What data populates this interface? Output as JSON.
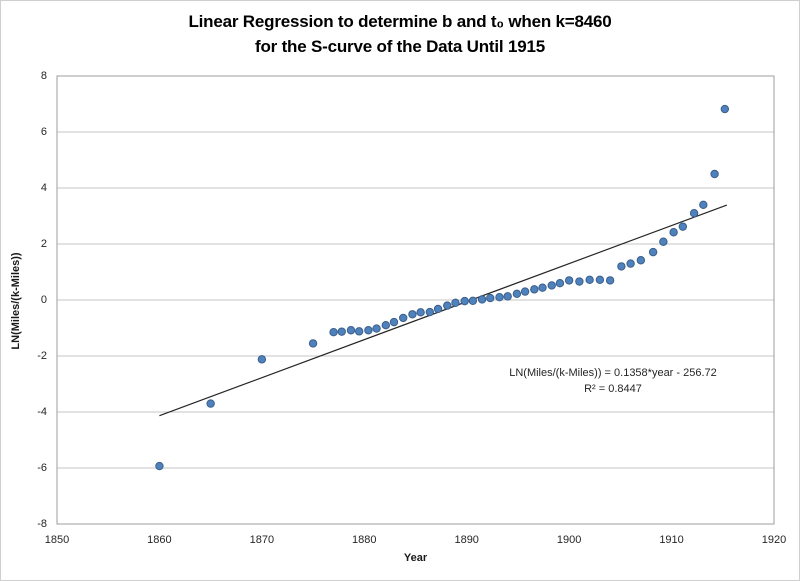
{
  "title": {
    "line1": "Linear Regression to determine b and t₀ when k=8460",
    "line2": "for the S-curve of the Data Until 1915"
  },
  "annotation": {
    "line1": "LN(Miles/(k-Miles)) = 0.1358*year - 256.72",
    "line2": "R² = 0.8447"
  },
  "chart_data": {
    "type": "scatter",
    "title": "Linear Regression to determine b and t₀ when k=8460 for the S-curve of the Data Until 1915",
    "xlabel": "Year",
    "ylabel": "LN(Miles/(k-Miles))",
    "xlim": [
      1850,
      1920
    ],
    "ylim": [
      -8,
      8
    ],
    "x_ticks": [
      1850,
      1860,
      1870,
      1880,
      1890,
      1900,
      1910,
      1920
    ],
    "y_ticks": [
      8,
      6,
      4,
      2,
      0,
      -2,
      -4,
      -6,
      -8
    ],
    "grid": "horizontal",
    "legend": "none",
    "series": [
      {
        "name": "LN(Miles/(k-Miles)) data",
        "points": [
          [
            1860,
            -5.93
          ],
          [
            1865,
            -3.7
          ],
          [
            1870,
            -2.12
          ],
          [
            1875,
            -1.55
          ],
          [
            1877.0,
            -1.15
          ],
          [
            1877.8,
            -1.13
          ],
          [
            1878.7,
            -1.08
          ],
          [
            1879.5,
            -1.12
          ],
          [
            1880.4,
            -1.08
          ],
          [
            1881.2,
            -1.02
          ],
          [
            1882.1,
            -0.9
          ],
          [
            1882.9,
            -0.79
          ],
          [
            1883.8,
            -0.64
          ],
          [
            1884.7,
            -0.51
          ],
          [
            1885.5,
            -0.44
          ],
          [
            1886.4,
            -0.43
          ],
          [
            1887.2,
            -0.32
          ],
          [
            1888.1,
            -0.2
          ],
          [
            1888.9,
            -0.1
          ],
          [
            1889.8,
            -0.04
          ],
          [
            1890.6,
            -0.03
          ],
          [
            1891.5,
            0.02
          ],
          [
            1892.3,
            0.07
          ],
          [
            1893.2,
            0.1
          ],
          [
            1894.0,
            0.13
          ],
          [
            1894.9,
            0.22
          ],
          [
            1895.7,
            0.3
          ],
          [
            1896.6,
            0.38
          ],
          [
            1897.4,
            0.44
          ],
          [
            1898.3,
            0.52
          ],
          [
            1899.1,
            0.6
          ],
          [
            1900.0,
            0.7
          ],
          [
            1901.0,
            0.66
          ],
          [
            1902.0,
            0.72
          ],
          [
            1903.0,
            0.72
          ],
          [
            1904.0,
            0.7
          ],
          [
            1905.1,
            1.2
          ],
          [
            1906.0,
            1.3
          ],
          [
            1907.0,
            1.42
          ],
          [
            1908.2,
            1.71
          ],
          [
            1909.2,
            2.08
          ],
          [
            1910.2,
            2.42
          ],
          [
            1911.1,
            2.62
          ],
          [
            1912.2,
            3.1
          ],
          [
            1913.1,
            3.4
          ],
          [
            1914.2,
            4.5
          ],
          [
            1915.2,
            6.82
          ]
        ]
      }
    ],
    "trendline": {
      "slope": 0.1358,
      "intercept": -256.72,
      "x_start": 1860,
      "x_end": 1915.4,
      "equation": "LN(Miles/(k-Miles)) = 0.1358*year - 256.72",
      "r_squared": 0.8447
    },
    "colors": {
      "marker_fill": "#4f81bd",
      "marker_edge": "#3a5f8a",
      "trendline": "#262626",
      "gridline": "#c6c6c6",
      "plot_border": "#9e9e9e",
      "text": "#262626"
    }
  }
}
